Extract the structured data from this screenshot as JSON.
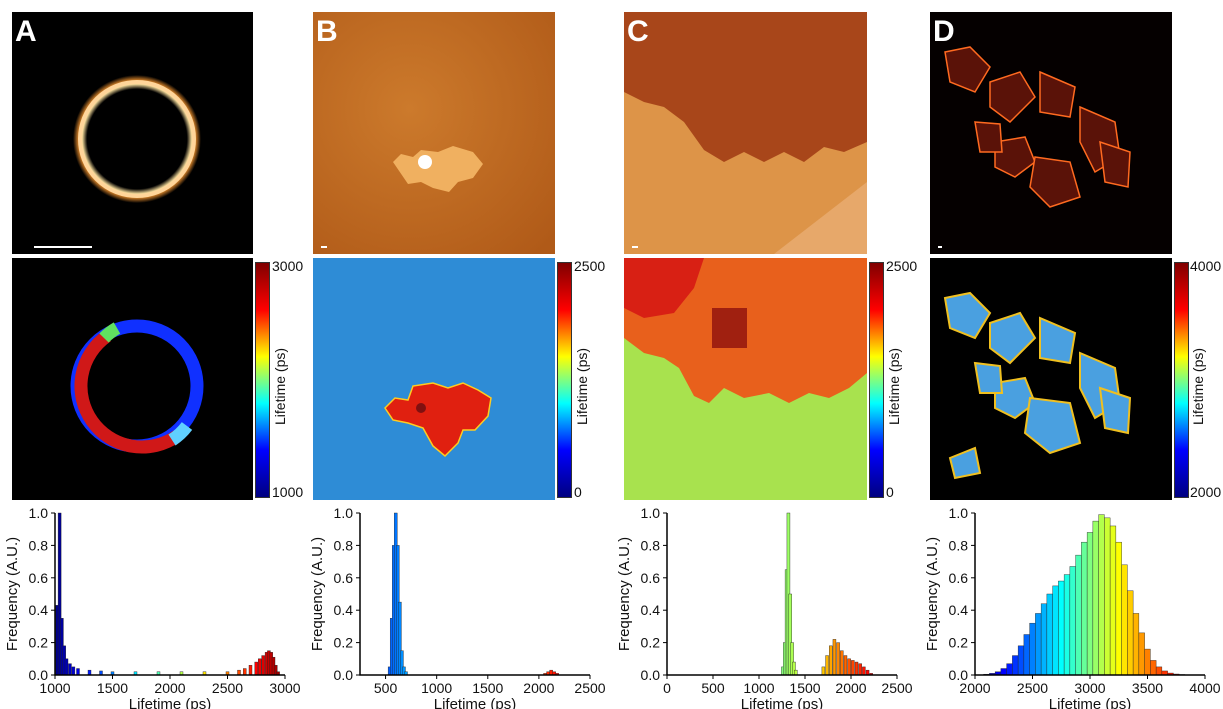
{
  "panels": [
    {
      "letter": "A",
      "colorbar": {
        "min": "1000",
        "max": "3000",
        "title": "Lifetime (ps)"
      }
    },
    {
      "letter": "B",
      "colorbar": {
        "min": "0",
        "max": "2500",
        "title": "Lifetime (ps)"
      }
    },
    {
      "letter": "C",
      "colorbar": {
        "min": "0",
        "max": "2500",
        "title": "Lifetime (ps)"
      }
    },
    {
      "letter": "D",
      "colorbar": {
        "min": "2000",
        "max": "4000",
        "title": "Lifetime (ps)"
      }
    }
  ],
  "colors": {
    "intensity_dark": "#000000",
    "intensity_orange": "#c86a1e",
    "lifetime_blue": "#2c8ad8",
    "lifetime_red": "#e02010",
    "lifetime_green": "#a6e04c"
  },
  "chart_data": [
    {
      "type": "bar",
      "title": "",
      "xlabel": "Lifetime (ps)",
      "ylabel": "Frequency (A.U.)",
      "xlim": [
        1000,
        3000
      ],
      "ylim": [
        0,
        1.0
      ],
      "xticks": [
        "1000",
        "1500",
        "2000",
        "2500",
        "3000"
      ],
      "yticks": [
        "0.0",
        "0.2",
        "0.4",
        "0.6",
        "0.8",
        "1.0"
      ],
      "x": [
        1020,
        1040,
        1060,
        1080,
        1100,
        1130,
        1160,
        1200,
        1300,
        1400,
        1500,
        1700,
        1900,
        2100,
        2300,
        2500,
        2600,
        2650,
        2700,
        2750,
        2780,
        2810,
        2840,
        2860,
        2880,
        2900,
        2920,
        2940
      ],
      "values": [
        0.43,
        1.0,
        0.35,
        0.18,
        0.1,
        0.07,
        0.05,
        0.04,
        0.03,
        0.025,
        0.02,
        0.02,
        0.02,
        0.02,
        0.02,
        0.02,
        0.03,
        0.04,
        0.06,
        0.08,
        0.1,
        0.12,
        0.14,
        0.15,
        0.14,
        0.11,
        0.06,
        0.02
      ]
    },
    {
      "type": "bar",
      "title": "",
      "xlabel": "Lifetime (ps)",
      "ylabel": "Frequency (A.U.)",
      "xlim": [
        250,
        2500
      ],
      "ylim": [
        0,
        1.0
      ],
      "xticks": [
        "500",
        "1000",
        "1500",
        "2000",
        "2500"
      ],
      "yticks": [
        "0.0",
        "0.2",
        "0.4",
        "0.6",
        "0.8",
        "1.0"
      ],
      "x": [
        540,
        560,
        580,
        600,
        620,
        640,
        660,
        680,
        700,
        2060,
        2090,
        2120,
        2150,
        2180
      ],
      "values": [
        0.05,
        0.35,
        0.8,
        1.0,
        0.8,
        0.45,
        0.15,
        0.05,
        0.02,
        0.01,
        0.02,
        0.03,
        0.02,
        0.01
      ]
    },
    {
      "type": "bar",
      "title": "",
      "xlabel": "Lifetime (ps)",
      "ylabel": "Frequency (A.U.)",
      "xlim": [
        0,
        2500
      ],
      "ylim": [
        0,
        1.0
      ],
      "xticks": [
        "0",
        "500",
        "1000",
        "1500",
        "2000",
        "2500"
      ],
      "yticks": [
        "0.0",
        "0.2",
        "0.4",
        "0.6",
        "0.8",
        "1.0"
      ],
      "x": [
        1260,
        1280,
        1300,
        1320,
        1340,
        1360,
        1380,
        1400,
        1700,
        1740,
        1780,
        1820,
        1860,
        1900,
        1940,
        1980,
        2020,
        2060,
        2100,
        2140,
        2180,
        2220
      ],
      "values": [
        0.05,
        0.2,
        0.65,
        1.0,
        0.5,
        0.2,
        0.08,
        0.03,
        0.05,
        0.12,
        0.18,
        0.22,
        0.2,
        0.15,
        0.12,
        0.1,
        0.09,
        0.08,
        0.07,
        0.05,
        0.03,
        0.01
      ]
    },
    {
      "type": "bar",
      "title": "",
      "xlabel": "Lifetime (ps)",
      "ylabel": "Frequency (A.U.)",
      "xlim": [
        2000,
        4000
      ],
      "ylim": [
        0,
        1.0
      ],
      "xticks": [
        "2000",
        "2500",
        "3000",
        "3500",
        "4000"
      ],
      "yticks": [
        "0.0",
        "0.2",
        "0.4",
        "0.6",
        "0.8",
        "1.0"
      ],
      "x": [
        2100,
        2150,
        2200,
        2250,
        2300,
        2350,
        2400,
        2450,
        2500,
        2550,
        2600,
        2650,
        2700,
        2750,
        2800,
        2850,
        2900,
        2950,
        3000,
        3050,
        3100,
        3150,
        3200,
        3250,
        3300,
        3350,
        3400,
        3450,
        3500,
        3550,
        3600,
        3650,
        3700,
        3750,
        3800,
        3850
      ],
      "values": [
        0.005,
        0.01,
        0.02,
        0.04,
        0.07,
        0.12,
        0.18,
        0.25,
        0.32,
        0.38,
        0.44,
        0.5,
        0.55,
        0.58,
        0.62,
        0.67,
        0.74,
        0.82,
        0.88,
        0.95,
        0.99,
        0.97,
        0.92,
        0.82,
        0.68,
        0.52,
        0.38,
        0.26,
        0.16,
        0.09,
        0.05,
        0.025,
        0.012,
        0.006,
        0.003,
        0.001
      ]
    }
  ]
}
